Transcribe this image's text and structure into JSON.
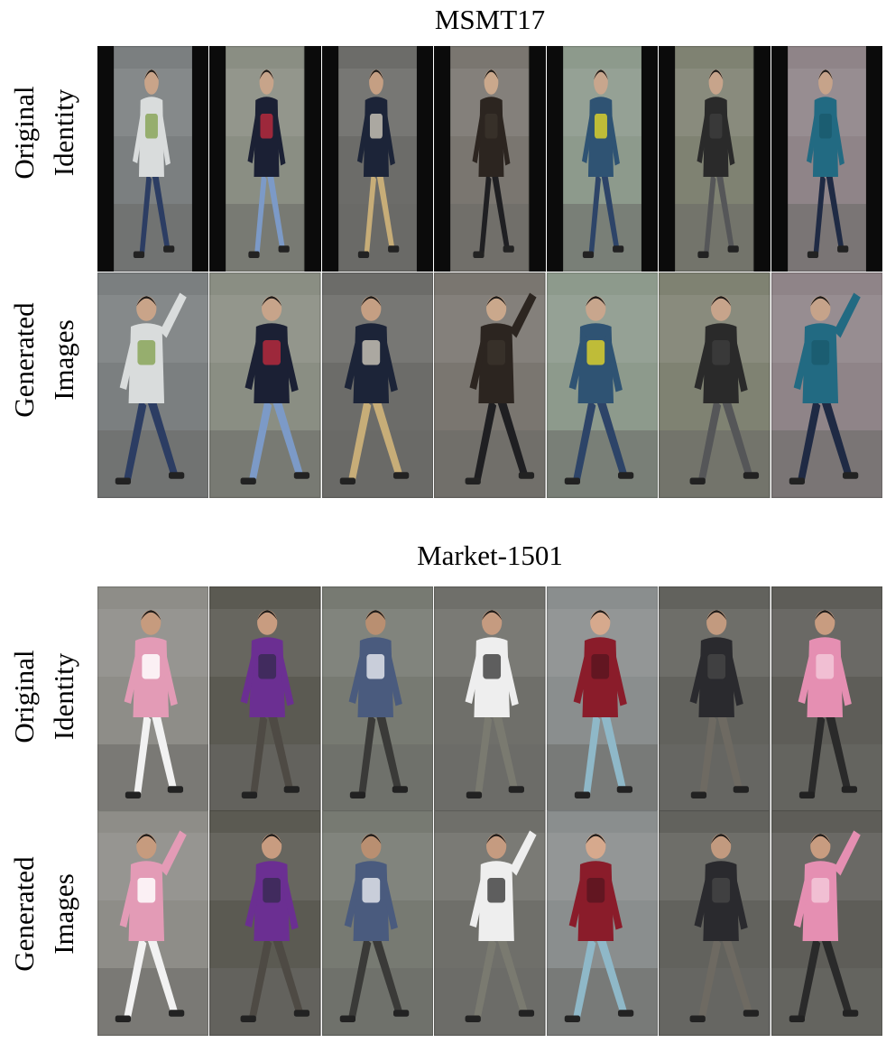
{
  "sections": [
    {
      "title": "MSMT17",
      "rows": [
        {
          "label_line1": "Original",
          "label_line2": "Identity",
          "kind": "original"
        },
        {
          "label_line1": "Generated",
          "label_line2": "Images",
          "kind": "generated"
        }
      ],
      "people": [
        {
          "top": "#d9dcdc",
          "bottom": "#2c3d63",
          "bg": "#7b7f80",
          "skin": "#c9a489",
          "accent": "#8aa65a"
        },
        {
          "top": "#1b2034",
          "bottom": "#7c9ac7",
          "bg": "#8a8e83",
          "skin": "#c7a48a",
          "accent": "#b42a3d"
        },
        {
          "top": "#1c2438",
          "bottom": "#c7ad78",
          "bg": "#6c6c69",
          "skin": "#c59f83",
          "accent": "#c4c0b4"
        },
        {
          "top": "#2c2520",
          "bottom": "#1f1f22",
          "bg": "#7a7670",
          "skin": "#caa88c",
          "accent": "#3a332c"
        },
        {
          "top": "#2f5373",
          "bottom": "#2d4468",
          "bg": "#8d9a8c",
          "skin": "#c8a68d",
          "accent": "#d8cf2e"
        },
        {
          "top": "#2a2a2a",
          "bottom": "#555658",
          "bg": "#7f8272",
          "skin": "#c7a48b",
          "accent": "#3c3c3c"
        },
        {
          "top": "#226a82",
          "bottom": "#1f2a44",
          "bg": "#8f8488",
          "skin": "#c6a38a",
          "accent": "#1a5a6f"
        }
      ]
    },
    {
      "title": "Market-1501",
      "rows": [
        {
          "label_line1": "Original",
          "label_line2": "Identity",
          "kind": "original"
        },
        {
          "label_line1": "Generated",
          "label_line2": "Images",
          "kind": "generated"
        }
      ],
      "people": [
        {
          "top": "#e39bb6",
          "bottom": "#f2f2f2",
          "bg": "#8e8d88",
          "skin": "#c69b7e",
          "accent": "#ffffff"
        },
        {
          "top": "#6b2f92",
          "bottom": "#4e4a44",
          "bg": "#5b5a52",
          "skin": "#c89c80",
          "accent": "#3a2a55"
        },
        {
          "top": "#4a5b7e",
          "bottom": "#3a3a38",
          "bg": "#777a72",
          "skin": "#b98f71",
          "accent": "#dfe3ea"
        },
        {
          "top": "#eeeeee",
          "bottom": "#7a7a70",
          "bg": "#6f6f6a",
          "skin": "#c59b80",
          "accent": "#444444"
        },
        {
          "top": "#8a1c2a",
          "bottom": "#8fb8c8",
          "bg": "#8a8e8e",
          "skin": "#d6a98d",
          "accent": "#5a1520"
        },
        {
          "top": "#2a2a2e",
          "bottom": "#6e6a62",
          "bg": "#62625d",
          "skin": "#c29a7f",
          "accent": "#444444"
        },
        {
          "top": "#e58fb2",
          "bottom": "#2a2a2a",
          "bg": "#5e5d58",
          "skin": "#c89c80",
          "accent": "#f3c8d8"
        }
      ]
    }
  ]
}
